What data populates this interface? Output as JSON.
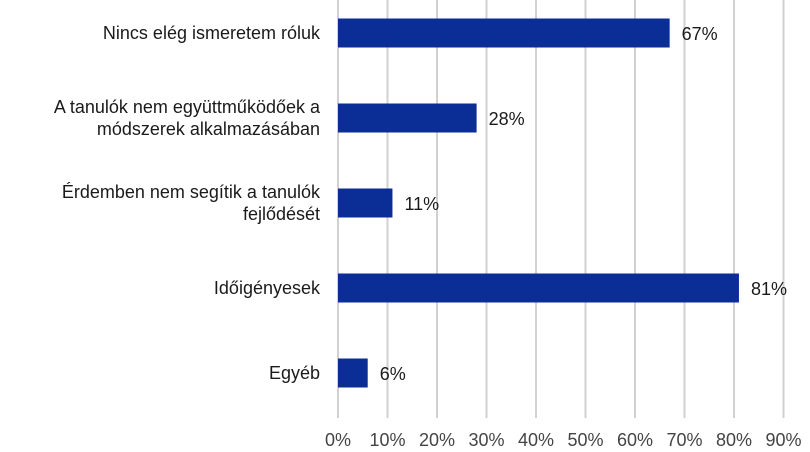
{
  "chart_data": {
    "type": "bar",
    "orientation": "horizontal",
    "categories": [
      [
        "Nincs elég ismeretem róluk"
      ],
      [
        "A tanulók nem együttműködőek a",
        "módszerek alkalmazásában"
      ],
      [
        "Érdemben nem segítik a tanulók",
        "fejlődését"
      ],
      [
        "Időigényesek"
      ],
      [
        "Egyéb"
      ]
    ],
    "values": [
      67,
      28,
      11,
      81,
      6
    ],
    "value_labels": [
      "67%",
      "28%",
      "11%",
      "81%",
      "6%"
    ],
    "xlim": [
      0,
      90
    ],
    "x_ticks": [
      0,
      10,
      20,
      30,
      40,
      50,
      60,
      70,
      80,
      90
    ],
    "x_tick_labels": [
      "0%",
      "10%",
      "20%",
      "30%",
      "40%",
      "50%",
      "60%",
      "70%",
      "80%",
      "90%"
    ],
    "grid": true,
    "legend": "none",
    "bar_color": "#0b2d96",
    "grid_color": "#d0d0d0"
  }
}
